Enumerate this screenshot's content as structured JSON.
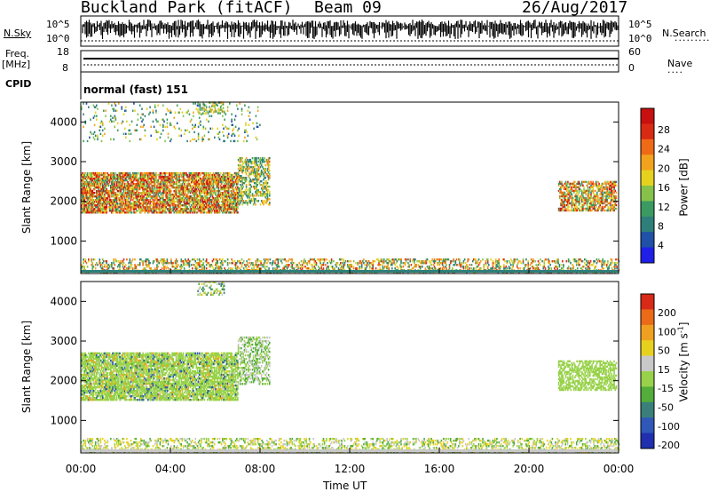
{
  "header": {
    "station": "Buckland Park (fitACF)",
    "beam": "Beam 09",
    "date": "26/Aug/2017"
  },
  "summary_panels": {
    "nsky_label": "N.Sky",
    "nsky_ticks": [
      "10^5",
      "10^0"
    ],
    "nsearch_label": "N.Search",
    "nsearch_ticks": [
      "10^5",
      "10^0"
    ],
    "freq_label": "Freq.",
    "freq_unit": "[MHz]",
    "freq_ticks": [
      "18",
      "8"
    ],
    "nave_label": "Nave",
    "nave_ticks": [
      "60",
      "0"
    ],
    "cpid_label": "CPID",
    "cpid_value": "normal (fast) 151"
  },
  "colors": {
    "power_scale": [
      "#1f1fe8",
      "#2050a8",
      "#2e7f7a",
      "#3a9a62",
      "#86c24b",
      "#e5d21e",
      "#f2a21c",
      "#ef6a16",
      "#d92a14",
      "#c81010"
    ],
    "velocity_scale": [
      "#1f2fb0",
      "#2f58b8",
      "#3a7f7a",
      "#52ad3a",
      "#98d24a",
      "#c8c8c8",
      "#e6d21e",
      "#f0a020",
      "#ea6a18",
      "#d82a16"
    ]
  },
  "chart_data": [
    {
      "type": "heatmap",
      "name": "power",
      "xlabel": "Time UT",
      "ylabel": "Slant Range [km]",
      "x_ticks": [
        "00:00",
        "04:00",
        "08:00",
        "12:00",
        "16:00",
        "20:00",
        "00:00"
      ],
      "xlim": [
        0,
        24
      ],
      "ylim": [
        180,
        4500
      ],
      "y_ticks": [
        1000,
        2000,
        3000,
        4000
      ],
      "colorbar": {
        "label": "Power [dB]",
        "ticks": [
          4,
          8,
          12,
          16,
          20,
          24,
          28
        ],
        "range": [
          0,
          30
        ]
      },
      "regions": [
        {
          "t": [
            0.0,
            7.0
          ],
          "r": [
            1700,
            2700
          ],
          "v": [
            8,
            30
          ],
          "d": 0.75
        },
        {
          "t": [
            7.0,
            8.4
          ],
          "r": [
            1900,
            3100
          ],
          "v": [
            6,
            22
          ],
          "d": 0.5
        },
        {
          "t": [
            21.3,
            23.9
          ],
          "r": [
            1750,
            2500
          ],
          "v": [
            8,
            28
          ],
          "d": 0.6
        },
        {
          "t": [
            0.0,
            24.0
          ],
          "r": [
            200,
            560
          ],
          "v": [
            6,
            26
          ],
          "d": 0.35
        },
        {
          "t": [
            0.0,
            8.0
          ],
          "r": [
            3500,
            4450
          ],
          "v": [
            4,
            20
          ],
          "d": 0.08
        },
        {
          "t": [
            5.2,
            6.4
          ],
          "r": [
            4200,
            4480
          ],
          "v": [
            6,
            20
          ],
          "d": 0.3
        }
      ]
    },
    {
      "type": "heatmap",
      "name": "velocity",
      "xlabel": "Time UT",
      "ylabel": "Slant Range [km]",
      "x_ticks": [
        "00:00",
        "04:00",
        "08:00",
        "12:00",
        "16:00",
        "20:00",
        "00:00"
      ],
      "xlim": [
        0,
        24
      ],
      "ylim": [
        180,
        4500
      ],
      "y_ticks": [
        1000,
        2000,
        3000,
        4000
      ],
      "colorbar": {
        "label": "Velocity [m s^-1]",
        "ticks": [
          200,
          100,
          50,
          15,
          -15,
          -50,
          -100,
          -200
        ]
      },
      "regions": [
        {
          "t": [
            0.0,
            7.0
          ],
          "r": [
            1500,
            2700
          ],
          "v": [
            -15,
            15
          ],
          "d": 0.7
        },
        {
          "t": [
            0.0,
            7.0
          ],
          "r": [
            1500,
            2700
          ],
          "v": [
            -200,
            200
          ],
          "d": 0.15
        },
        {
          "t": [
            7.0,
            8.4
          ],
          "r": [
            1900,
            3100
          ],
          "v": [
            -50,
            50
          ],
          "d": 0.45
        },
        {
          "t": [
            21.3,
            23.9
          ],
          "r": [
            1750,
            2500
          ],
          "v": [
            -15,
            15
          ],
          "d": 0.55
        },
        {
          "t": [
            0.0,
            24.0
          ],
          "r": [
            200,
            560
          ],
          "v": [
            -100,
            50
          ],
          "d": 0.35
        },
        {
          "t": [
            5.2,
            6.4
          ],
          "r": [
            4150,
            4480
          ],
          "v": [
            -100,
            100
          ],
          "d": 0.3
        }
      ]
    }
  ]
}
